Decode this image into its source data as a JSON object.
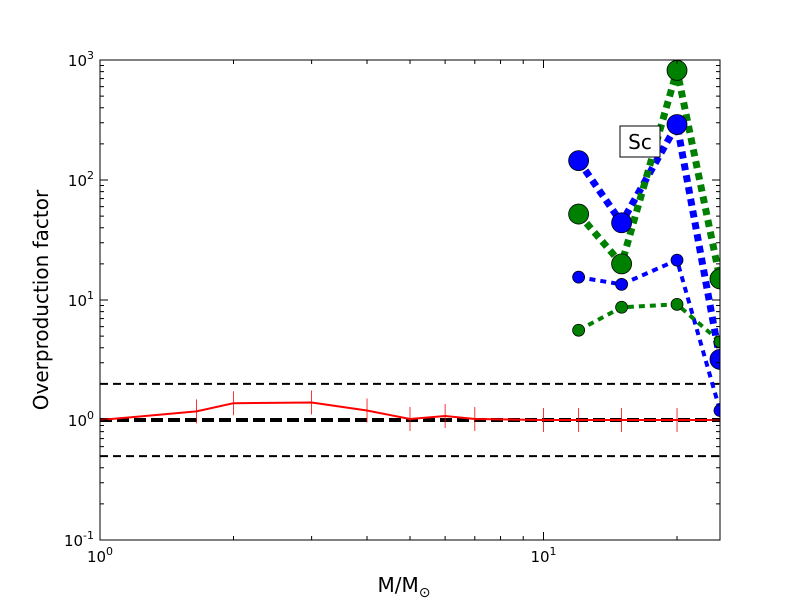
{
  "chart_data": {
    "type": "line",
    "title": "",
    "xlabel": "M/M",
    "xlabel_subscript": "⊙",
    "ylabel": "Overproduction factor",
    "xscale": "log",
    "yscale": "log",
    "xlim": [
      1,
      25
    ],
    "ylim": [
      0.1,
      1000
    ],
    "x_ticks": [
      {
        "value": 1,
        "base": "10",
        "exp": "0"
      },
      {
        "value": 10,
        "base": "10",
        "exp": "1"
      }
    ],
    "y_ticks": [
      {
        "value": 0.1,
        "base": "10",
        "exp": "-1"
      },
      {
        "value": 1,
        "base": "10",
        "exp": "0"
      },
      {
        "value": 10,
        "base": "10",
        "exp": "1"
      },
      {
        "value": 100,
        "base": "10",
        "exp": "2"
      },
      {
        "value": 1000,
        "base": "10",
        "exp": "3"
      }
    ],
    "grid": false,
    "annotation": "Sc",
    "reference_lines": [
      {
        "y": 2.0,
        "style": "dashed",
        "color": "#000000",
        "weight": "thin"
      },
      {
        "y": 1.0,
        "style": "dashed",
        "color": "#000000",
        "weight": "thick"
      },
      {
        "y": 0.5,
        "style": "dashed",
        "color": "#000000",
        "weight": "thin"
      }
    ],
    "series": [
      {
        "color": "#ff0000",
        "style": "solid",
        "marker": "vline",
        "x": [
          1,
          1.65,
          2,
          3,
          4,
          5,
          6,
          7,
          10,
          12,
          15,
          20,
          25
        ],
        "y": [
          1.0,
          1.18,
          1.38,
          1.4,
          1.2,
          1.02,
          1.08,
          1.02,
          1.0,
          1.0,
          1.0,
          1.0,
          1.0
        ]
      },
      {
        "color": "#0000ff",
        "style": "dotted",
        "weight": "thick",
        "marker": "large-circle",
        "x": [
          12,
          15,
          20,
          25
        ],
        "y": [
          145,
          44,
          290,
          3.2
        ]
      },
      {
        "color": "#008000",
        "style": "dotted",
        "weight": "thick",
        "marker": "large-circle",
        "x": [
          12,
          15,
          20,
          25
        ],
        "y": [
          52,
          20,
          820,
          15
        ]
      },
      {
        "color": "#0000ff",
        "style": "dotted",
        "weight": "medium",
        "marker": "small-circle",
        "x": [
          12,
          15,
          20,
          25
        ],
        "y": [
          15.5,
          13.5,
          21.5,
          1.2
        ]
      },
      {
        "color": "#008000",
        "style": "dotted",
        "weight": "medium",
        "marker": "small-circle",
        "x": [
          12,
          15,
          20,
          25
        ],
        "y": [
          5.6,
          8.7,
          9.2,
          4.5
        ]
      }
    ]
  }
}
